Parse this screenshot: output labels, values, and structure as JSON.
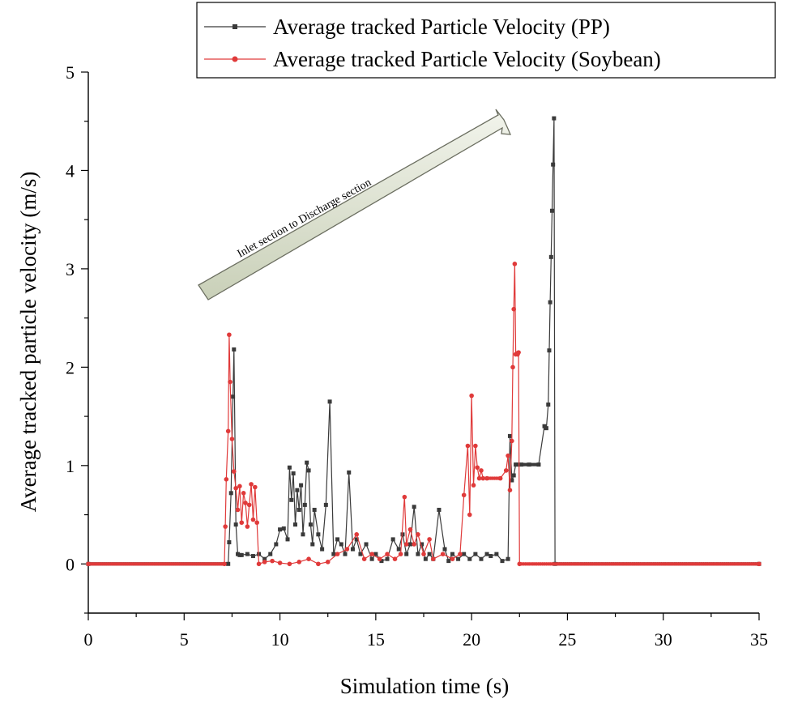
{
  "chart_data": {
    "type": "line",
    "xlabel": "Simulation time (s)",
    "ylabel": "Average tracked particle velocity (m/s)",
    "xlim": [
      0,
      35
    ],
    "ylim": [
      -0.5,
      5
    ],
    "xticks": [
      0,
      5,
      10,
      15,
      20,
      25,
      30,
      35
    ],
    "yticks": [
      0,
      1,
      2,
      3,
      4,
      5
    ],
    "legend_position": "top-right",
    "annotation": "Inlet section to Discharge section",
    "series": [
      {
        "name": "Average tracked Particle Velocity (PP)",
        "color": "#3a3a3a",
        "x": [
          0,
          7.3,
          7.35,
          7.45,
          7.55,
          7.6,
          7.7,
          7.8,
          7.9,
          8.0,
          8.3,
          8.6,
          8.9,
          9.2,
          9.5,
          9.8,
          10.0,
          10.2,
          10.4,
          10.5,
          10.6,
          10.7,
          10.8,
          10.9,
          11.0,
          11.1,
          11.2,
          11.3,
          11.4,
          11.5,
          11.6,
          11.7,
          11.8,
          12.0,
          12.2,
          12.4,
          12.6,
          12.8,
          13.0,
          13.2,
          13.4,
          13.6,
          13.8,
          14.0,
          14.2,
          14.5,
          14.8,
          15.0,
          15.3,
          15.6,
          15.9,
          16.2,
          16.4,
          16.6,
          16.8,
          17.0,
          17.2,
          17.4,
          17.6,
          17.8,
          18.0,
          18.3,
          18.6,
          18.8,
          19.0,
          19.3,
          19.6,
          19.9,
          20.2,
          20.5,
          20.8,
          21.0,
          21.3,
          21.6,
          21.9,
          22.0,
          22.1,
          22.2,
          22.3,
          22.4,
          22.6,
          23.0,
          23.5,
          23.8,
          23.9,
          24.0,
          24.05,
          24.1,
          24.15,
          24.2,
          24.25,
          24.3,
          24.35,
          35
        ],
        "y": [
          0,
          0,
          0.22,
          0.72,
          1.7,
          2.18,
          0.4,
          0.1,
          0.09,
          0.09,
          0.1,
          0.08,
          0.1,
          0.05,
          0.1,
          0.2,
          0.35,
          0.36,
          0.25,
          0.98,
          0.65,
          0.92,
          0.4,
          0.75,
          0.55,
          0.8,
          0.3,
          0.6,
          1.03,
          0.95,
          0.4,
          0.2,
          0.55,
          0.3,
          0.15,
          0.6,
          1.65,
          0.1,
          0.25,
          0.2,
          0.1,
          0.93,
          0.15,
          0.25,
          0.1,
          0.2,
          0.05,
          0.1,
          0.03,
          0.05,
          0.25,
          0.15,
          0.3,
          0.1,
          0.2,
          0.58,
          0.1,
          0.2,
          0.05,
          0.1,
          0.05,
          0.55,
          0.15,
          0.03,
          0.1,
          0.05,
          0.1,
          0.05,
          0.1,
          0.05,
          0.1,
          0.08,
          0.1,
          0.03,
          0.05,
          1.3,
          0.85,
          0.9,
          1.01,
          1.01,
          1.01,
          1.01,
          1.01,
          1.4,
          1.38,
          1.62,
          2.17,
          2.66,
          3.12,
          3.59,
          4.06,
          4.53,
          0,
          0
        ]
      },
      {
        "name": "Average tracked Particle Velocity (Soybean)",
        "color": "#e03a3a",
        "x": [
          0,
          7.1,
          7.15,
          7.2,
          7.3,
          7.35,
          7.4,
          7.5,
          7.6,
          7.7,
          7.8,
          7.9,
          8.0,
          8.1,
          8.2,
          8.3,
          8.4,
          8.5,
          8.6,
          8.7,
          8.8,
          8.9,
          9.2,
          9.6,
          10.0,
          10.5,
          11.0,
          11.5,
          12.0,
          12.5,
          13.0,
          13.5,
          14.0,
          14.4,
          14.8,
          15.2,
          15.6,
          16.0,
          16.3,
          16.5,
          16.6,
          16.8,
          17.0,
          17.2,
          17.5,
          17.8,
          18.0,
          18.5,
          19.0,
          19.4,
          19.6,
          19.8,
          19.9,
          20.0,
          20.1,
          20.2,
          20.3,
          20.4,
          20.5,
          20.6,
          20.8,
          21.5,
          21.8,
          21.9,
          22.0,
          22.1,
          22.15,
          22.2,
          22.25,
          22.3,
          22.35,
          22.4,
          22.45,
          22.5,
          35
        ],
        "y": [
          0,
          0,
          0.38,
          0.86,
          1.35,
          2.33,
          1.85,
          1.27,
          0.94,
          0.77,
          0.55,
          0.79,
          0.42,
          0.72,
          0.62,
          0.38,
          0.6,
          0.81,
          0.45,
          0.78,
          0.42,
          0.0,
          0.02,
          0.03,
          0.01,
          0.0,
          0.02,
          0.05,
          0.0,
          0.02,
          0.1,
          0.15,
          0.3,
          0.05,
          0.1,
          0.05,
          0.1,
          0.05,
          0.1,
          0.68,
          0.2,
          0.35,
          0.2,
          0.3,
          0.1,
          0.25,
          0.05,
          0.1,
          0.05,
          0.1,
          0.7,
          1.2,
          0.5,
          1.71,
          0.8,
          1.2,
          0.98,
          0.87,
          0.95,
          0.87,
          0.87,
          0.87,
          0.95,
          1.1,
          0.75,
          1.25,
          2.0,
          2.59,
          3.05,
          2.13,
          2.14,
          2.13,
          2.15,
          0,
          0
        ]
      }
    ]
  }
}
